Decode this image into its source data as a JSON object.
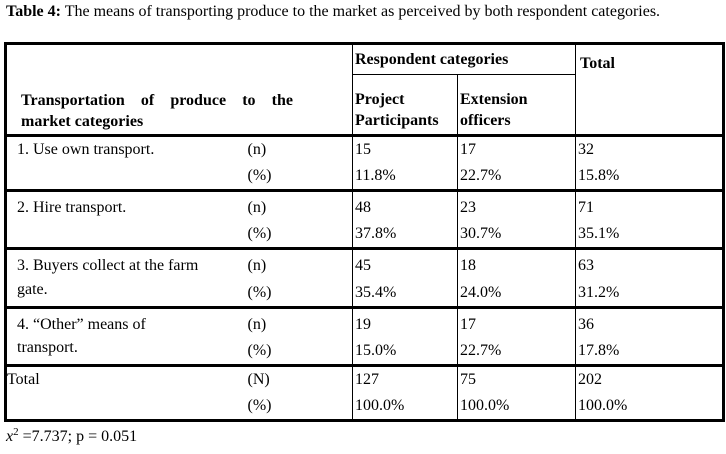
{
  "caption": {
    "label": "Table 4:",
    "text": " The means of transporting produce to the market as perceived by both respondent categories."
  },
  "header": {
    "respondent_categories": "Respondent categories",
    "row_header_line1": "Transportation of produce to the",
    "row_header_line2": "market categories",
    "col_project_line1": "Project",
    "col_project_line2": "Participants",
    "col_extension_line1": "Extension",
    "col_extension_line2": "officers",
    "col_total": "Total"
  },
  "rows": [
    {
      "label_line1": "1.  Use own transport.",
      "label_line2": "",
      "unit_n": "(n)",
      "unit_p": "(%)",
      "project_n": "15",
      "project_p": "11.8%",
      "extension_n": "17",
      "extension_p": "22.7%",
      "total_n": "32",
      "total_p": "15.8%"
    },
    {
      "label_line1": "2.  Hire transport.",
      "label_line2": "",
      "unit_n": "(n)",
      "unit_p": "(%)",
      "project_n": "48",
      "project_p": "37.8%",
      "extension_n": "23",
      "extension_p": "30.7%",
      "total_n": "71",
      "total_p": "35.1%"
    },
    {
      "label_line1": "3.  Buyers collect at the farm",
      "label_line2": "gate.",
      "unit_n": "(n)",
      "unit_p": "(%)",
      "project_n": "45",
      "project_p": "35.4%",
      "extension_n": "18",
      "extension_p": "24.0%",
      "total_n": "63",
      "total_p": "31.2%"
    },
    {
      "label_line1": "4.  “Other” means of",
      "label_line2": "transport.",
      "unit_n": "(n)",
      "unit_p": "(%)",
      "project_n": "19",
      "project_p": "15.0%",
      "extension_n": "17",
      "extension_p": "22.7%",
      "total_n": "36",
      "total_p": "17.8%"
    }
  ],
  "total_row": {
    "label": "Total",
    "unit_n": "(N)",
    "unit_p": "(%)",
    "project_n": "127",
    "project_p": "100.0%",
    "extension_n": "75",
    "extension_p": "100.0%",
    "total_n": "202",
    "total_p": "100.0%"
  },
  "footer": {
    "symbol": "x",
    "exponent": "2",
    "stats": " =7.737; p = 0.051"
  }
}
